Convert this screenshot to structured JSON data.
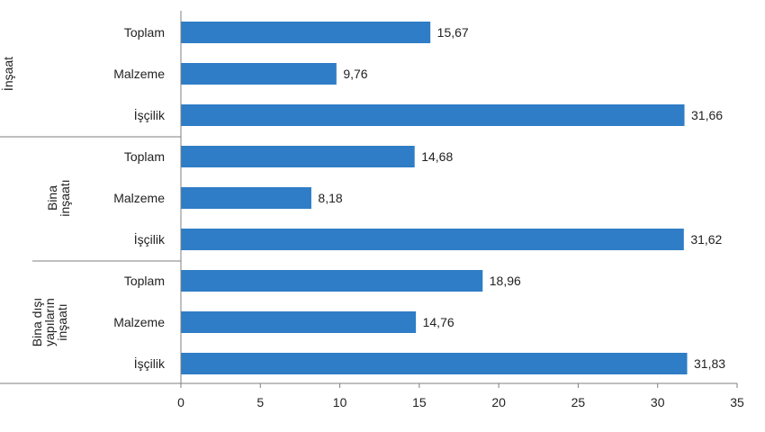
{
  "chart_data": {
    "type": "bar",
    "orientation": "horizontal",
    "groups": [
      {
        "label_lines": [
          "İnşaat"
        ],
        "bars": [
          {
            "label": "Toplam",
            "value": 15.67,
            "value_label": "15,67"
          },
          {
            "label": "Malzeme",
            "value": 9.76,
            "value_label": "9,76"
          },
          {
            "label": "İşçilik",
            "value": 31.66,
            "value_label": "31,66"
          }
        ]
      },
      {
        "label_lines": [
          "Bina",
          "inşaatı"
        ],
        "bars": [
          {
            "label": "Toplam",
            "value": 14.68,
            "value_label": "14,68"
          },
          {
            "label": "Malzeme",
            "value": 8.18,
            "value_label": "8,18"
          },
          {
            "label": "İşçilik",
            "value": 31.62,
            "value_label": "31,62"
          }
        ]
      },
      {
        "label_lines": [
          "Bina dışı",
          "yapıların",
          "inşaatı"
        ],
        "bars": [
          {
            "label": "Toplam",
            "value": 18.96,
            "value_label": "18,96"
          },
          {
            "label": "Malzeme",
            "value": 14.76,
            "value_label": "14,76"
          },
          {
            "label": "İşçilik",
            "value": 31.83,
            "value_label": "31,83"
          }
        ]
      }
    ],
    "xlim": [
      0,
      35
    ],
    "xticks": [
      "0",
      "5",
      "10",
      "15",
      "20",
      "25",
      "30",
      "35"
    ],
    "bar_color": "#2E7DC6",
    "grid": false
  }
}
